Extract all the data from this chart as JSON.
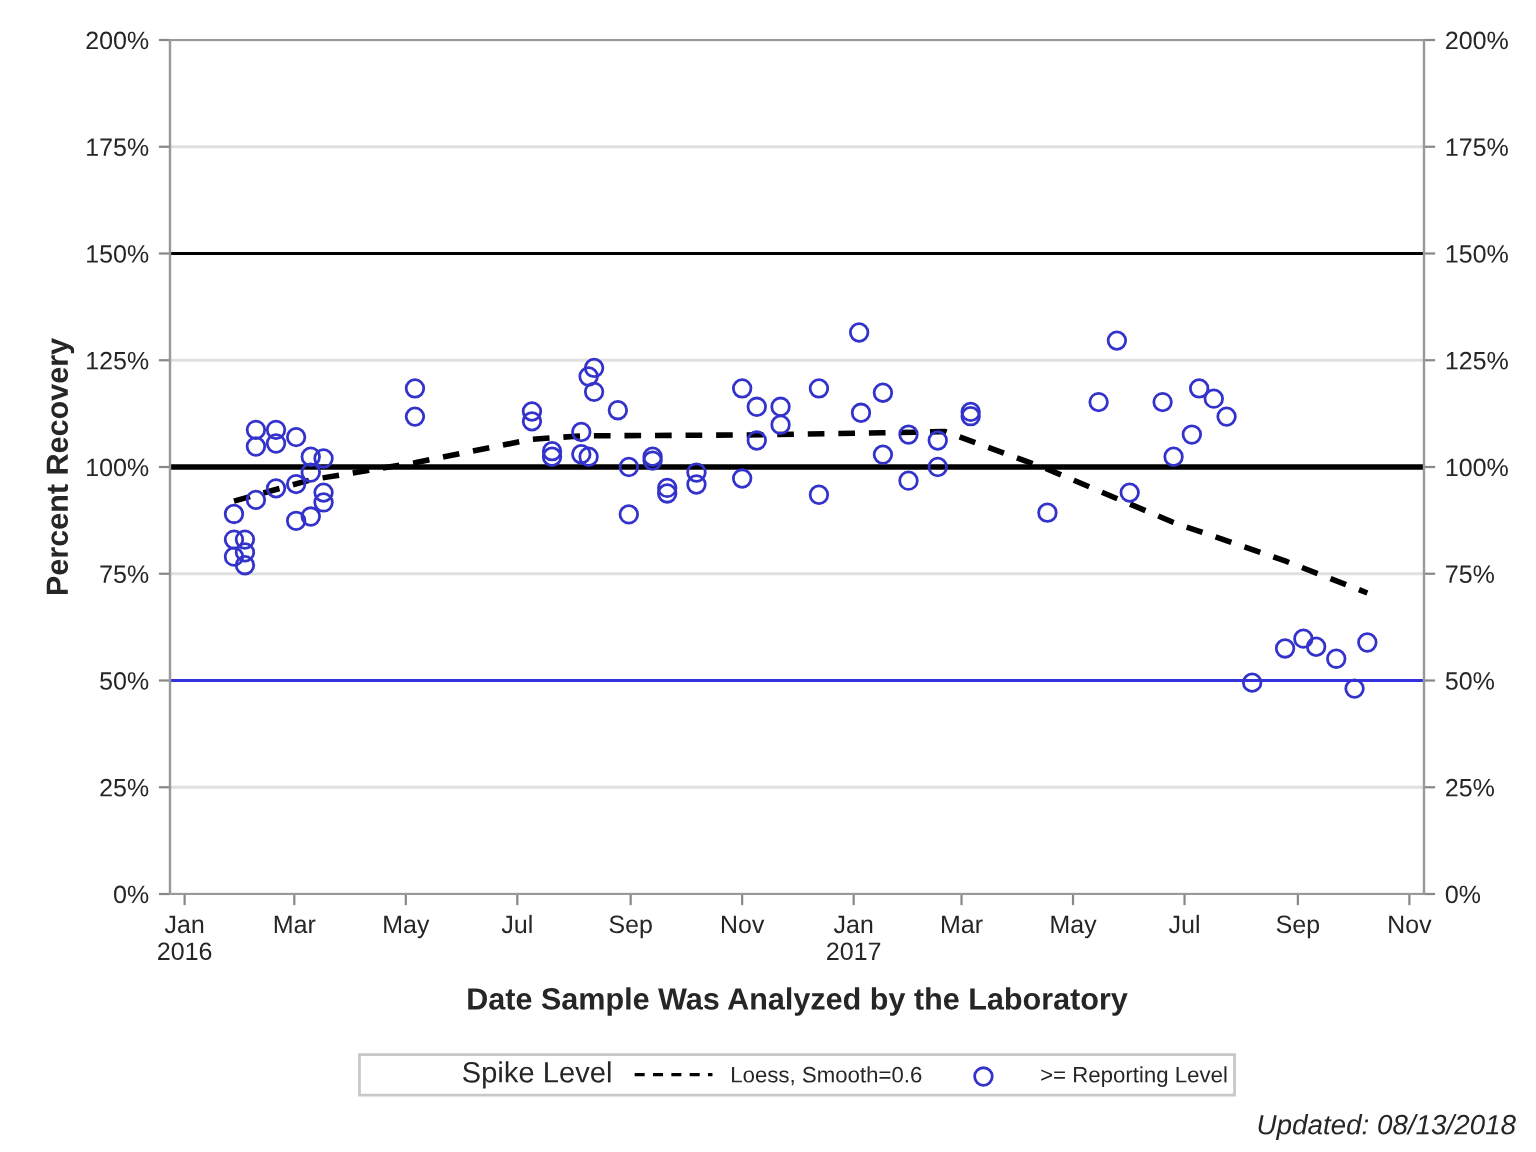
{
  "chart_data": {
    "type": "scatter",
    "xlabel": "Date Sample Was Analyzed by the Laboratory",
    "ylabel": "Percent Recovery",
    "legend_title": "Spike Level",
    "legend": "bottom",
    "grid": "y",
    "annotations": [
      "Updated: 08/13/2018"
    ],
    "xlim": [
      "2015-12-24",
      "2017-11-09"
    ],
    "xticks": [
      {
        "value": "2016-01-01",
        "label": "Jan\n2016"
      },
      {
        "value": "2016-03-01",
        "label": "Mar"
      },
      {
        "value": "2016-05-01",
        "label": "May"
      },
      {
        "value": "2016-07-01",
        "label": "Jul"
      },
      {
        "value": "2016-09-01",
        "label": "Sep"
      },
      {
        "value": "2016-11-01",
        "label": "Nov"
      },
      {
        "value": "2017-01-01",
        "label": "Jan\n2017"
      },
      {
        "value": "2017-03-01",
        "label": "Mar"
      },
      {
        "value": "2017-05-01",
        "label": "May"
      },
      {
        "value": "2017-07-01",
        "label": "Jul"
      },
      {
        "value": "2017-09-01",
        "label": "Sep"
      },
      {
        "value": "2017-11-01",
        "label": "Nov"
      }
    ],
    "ylim": [
      0,
      200
    ],
    "yticks": [
      {
        "value": 0,
        "label": "0%"
      },
      {
        "value": 25,
        "label": "25%"
      },
      {
        "value": 50,
        "label": "50%"
      },
      {
        "value": 75,
        "label": "75%"
      },
      {
        "value": 100,
        "label": "100%"
      },
      {
        "value": 125,
        "label": "125%"
      },
      {
        "value": 150,
        "label": "150%"
      },
      {
        "value": 175,
        "label": "175%"
      },
      {
        "value": 200,
        "label": "200%"
      }
    ],
    "y2lim": [
      0,
      200
    ],
    "y2ticks": [
      {
        "value": 0,
        "label": "0%"
      },
      {
        "value": 25,
        "label": "25%"
      },
      {
        "value": 50,
        "label": "50%"
      },
      {
        "value": 75,
        "label": "75%"
      },
      {
        "value": 100,
        "label": "100%"
      },
      {
        "value": 125,
        "label": "125%"
      },
      {
        "value": 150,
        "label": "150%"
      },
      {
        "value": 175,
        "label": "175%"
      },
      {
        "value": 200,
        "label": "200%"
      }
    ],
    "ref_lines": [
      {
        "axis": "y",
        "value": 150,
        "color": "#000000",
        "line_style": "solid"
      },
      {
        "axis": "y",
        "value": 100,
        "color": "#000000",
        "line_style": "solid"
      },
      {
        "axis": "y",
        "value": 50,
        "color": "#3333dd",
        "line_style": "solid"
      }
    ],
    "series": [
      {
        "name": "Loess, Smooth=0.6",
        "type": "line",
        "color": "#000000",
        "line_style": "dashed",
        "marker": "none",
        "x": [
          "2016-01-28",
          "2016-03-10",
          "2016-05-06",
          "2016-07-09",
          "2016-08-06",
          "2016-11-01",
          "2017-01-17",
          "2017-02-20",
          "2017-04-17",
          "2017-06-25",
          "2017-08-25",
          "2017-10-09"
        ],
        "values": [
          92,
          97,
          101,
          106.5,
          107.3,
          107.5,
          108,
          108.3,
          99.5,
          87,
          78,
          70.5
        ]
      },
      {
        "name": ">= Reporting Level",
        "color": "#3333cc",
        "marker": "circle",
        "x": [
          "2016-01-28",
          "2016-01-28",
          "2016-02-03",
          "2016-01-28",
          "2016-02-03",
          "2016-02-03",
          "2016-02-09",
          "2016-02-09",
          "2016-02-20",
          "2016-02-20",
          "2016-03-02",
          "2016-02-09",
          "2016-02-20",
          "2016-03-02",
          "2016-03-02",
          "2016-03-10",
          "2016-03-10",
          "2016-03-10",
          "2016-03-17",
          "2016-03-17",
          "2016-03-17",
          "2016-05-06",
          "2016-05-06",
          "2016-07-09",
          "2016-07-09",
          "2016-07-20",
          "2016-07-20",
          "2016-08-05",
          "2016-08-05",
          "2016-08-09",
          "2016-08-12",
          "2016-08-09",
          "2016-08-12",
          "2016-08-25",
          "2016-08-31",
          "2016-08-31",
          "2016-09-13",
          "2016-09-13",
          "2016-09-21",
          "2016-09-21",
          "2016-10-07",
          "2016-10-07",
          "2016-11-01",
          "2016-11-01",
          "2016-11-09",
          "2016-11-09",
          "2016-11-22",
          "2016-11-22",
          "2016-12-13",
          "2016-12-13",
          "2017-01-04",
          "2017-01-05",
          "2017-01-17",
          "2017-01-17",
          "2017-01-31",
          "2017-01-31",
          "2017-02-16",
          "2017-02-16",
          "2017-03-06",
          "2017-03-06",
          "2017-04-17",
          "2017-05-15",
          "2017-05-25",
          "2017-06-01",
          "2017-06-19",
          "2017-06-25",
          "2017-07-05",
          "2017-07-09",
          "2017-07-17",
          "2017-07-24",
          "2017-08-07",
          "2017-08-25",
          "2017-09-04",
          "2017-09-11",
          "2017-09-22",
          "2017-10-02",
          "2017-10-09"
        ],
        "values": [
          89,
          83,
          83,
          79,
          80,
          77,
          108.7,
          104.8,
          108.7,
          105.5,
          107,
          92.3,
          95,
          96,
          87.4,
          88.4,
          98.7,
          102.4,
          102,
          94,
          91.7,
          118.4,
          111.8,
          113,
          110.7,
          103.7,
          102.4,
          108.2,
          103,
          102.4,
          123.2,
          121.2,
          117.6,
          113.3,
          100,
          88.9,
          102.4,
          101.5,
          95.1,
          93.8,
          98.7,
          95.9,
          118.4,
          97.3,
          114.1,
          106.2,
          114.1,
          109.9,
          118.4,
          93.5,
          131.5,
          112.7,
          117.4,
          102.9,
          107.6,
          96.8,
          106.2,
          100,
          112.9,
          111.9,
          89.3,
          115.2,
          129.6,
          94,
          115.2,
          102.4,
          107.6,
          118.4,
          116,
          111.8,
          49.5,
          57.5,
          59.8,
          57.9,
          55.1,
          48.1,
          58.9
        ]
      }
    ]
  }
}
